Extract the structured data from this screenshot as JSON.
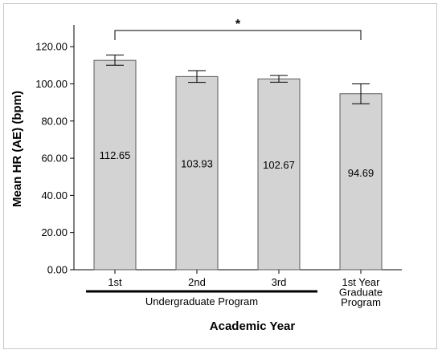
{
  "chart_data": {
    "type": "bar",
    "categories": [
      [
        "1st"
      ],
      [
        "2nd"
      ],
      [
        "3rd"
      ],
      [
        "1st Year",
        "Graduate",
        "Program"
      ]
    ],
    "values": [
      112.65,
      103.93,
      102.67,
      94.69
    ],
    "error_low": [
      110.0,
      100.8,
      100.9,
      89.3
    ],
    "error_high": [
      115.5,
      107.1,
      104.5,
      100.0
    ],
    "data_labels": [
      "112.65",
      "103.93",
      "102.67",
      "94.69"
    ],
    "ylabel": "Mean HR (AE) (bpm)",
    "xlabel": "Academic Year",
    "ylim": [
      0,
      130
    ],
    "yticks": [
      0,
      20,
      40,
      60,
      80,
      100,
      120
    ],
    "ytick_labels": [
      "0.00",
      "20.00",
      "40.00",
      "60.00",
      "80.00",
      "100.00",
      "120.00"
    ],
    "group_label": "Undergraduate Program",
    "group_span": [
      0,
      2
    ],
    "significance": {
      "from": 0,
      "to": 3,
      "label": "*"
    },
    "bar_color": "#d3d3d3",
    "bar_edge_color": "#5a5a5a",
    "grid": false
  }
}
